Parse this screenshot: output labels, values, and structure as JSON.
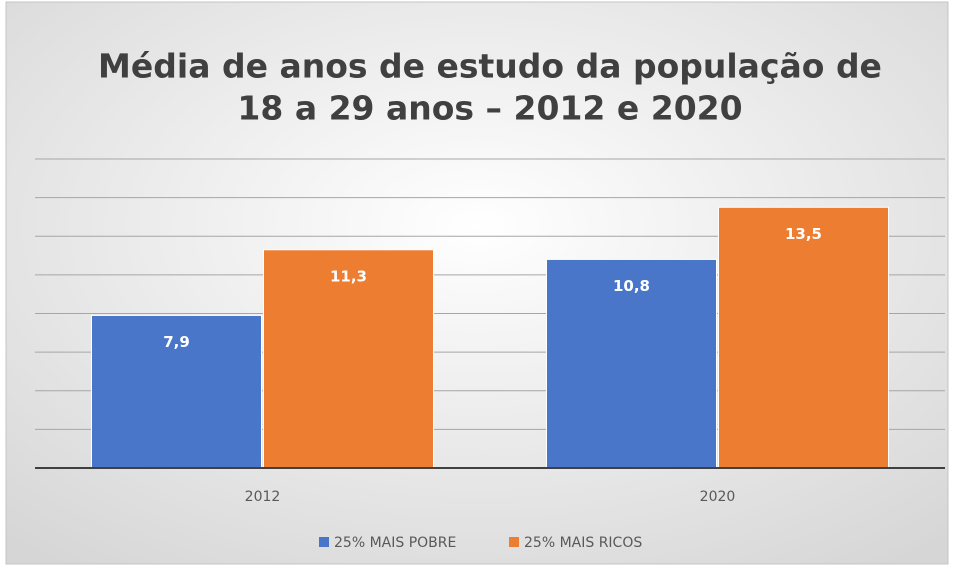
{
  "chart_data": {
    "type": "bar",
    "title": [
      "Média de anos de estudo da população de",
      "18 a 29 anos – 2012 e 2020"
    ],
    "categories": [
      "2012",
      "2020"
    ],
    "series": [
      {
        "name": "25% MAIS POBRE",
        "color": "#4a76c9",
        "values": [
          7.9,
          10.8
        ],
        "value_labels": [
          "7,9",
          "10,8"
        ]
      },
      {
        "name": "25% MAIS RICOS",
        "color": "#ed7d31",
        "values": [
          11.3,
          13.5
        ],
        "value_labels": [
          "11,3",
          "13,5"
        ]
      }
    ],
    "ylim": [
      0,
      16
    ],
    "yticks": [
      0,
      2,
      4,
      6,
      8,
      10,
      12,
      14,
      16
    ],
    "grid": true,
    "legend": "bottom"
  }
}
